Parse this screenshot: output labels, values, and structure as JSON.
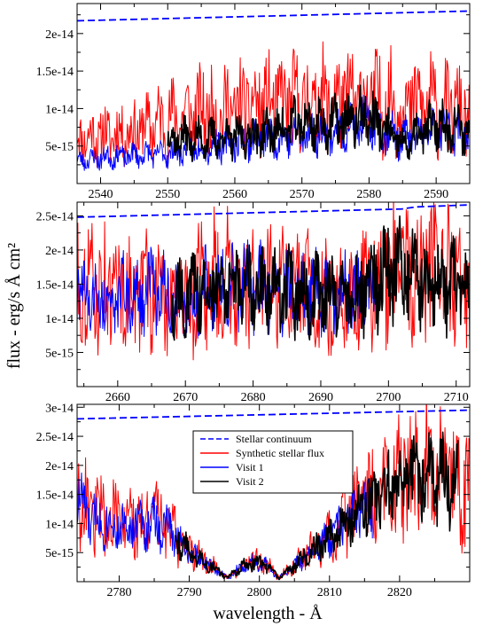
{
  "figure": {
    "ylabel": "flux  - erg/s Å cm²",
    "xlabel": "wavelength - Å"
  },
  "legend": {
    "items": [
      {
        "label": "Stellar continuum",
        "color": "#0000ff",
        "dash": true
      },
      {
        "label": "Synthetic stellar flux",
        "color": "#ff0000",
        "dash": false
      },
      {
        "label": "Visit 1",
        "color": "#0000ff",
        "dash": false
      },
      {
        "label": "Visit 2",
        "color": "#000000",
        "dash": false
      }
    ]
  },
  "colors": {
    "continuum": "#0000ff",
    "synthetic": "#ff0000",
    "visit1": "#0000ff",
    "visit2": "#000000"
  },
  "chart_data": [
    {
      "type": "line",
      "xlim": [
        2536.5,
        2595
      ],
      "ylim": [
        0,
        2.4e-14
      ],
      "xticks": [
        2540,
        2550,
        2560,
        2570,
        2580,
        2590
      ],
      "xtick_labels": [
        "2540",
        "2550",
        "2560",
        "2570",
        "2580",
        "2590"
      ],
      "yticks": [
        5e-15,
        1e-14,
        1.5e-14,
        2e-14
      ],
      "ytick_labels": [
        "5e-15",
        "1e-14",
        "1.5e-14",
        "2e-14"
      ],
      "continuum": {
        "x": [
          2536.5,
          2595
        ],
        "y": [
          2.17e-14,
          2.3e-14
        ]
      },
      "synthetic_profile": {
        "x": [
          2536.5,
          2545,
          2550,
          2555,
          2560,
          2565,
          2570,
          2575,
          2580,
          2585,
          2590,
          2595
        ],
        "y": [
          6e-15,
          7e-15,
          8.5e-15,
          9.5e-15,
          1e-14,
          1.05e-14,
          1.1e-14,
          1.1e-14,
          1.1e-14,
          1.05e-14,
          1.05e-14,
          9e-15
        ]
      },
      "visit1_profile": {
        "x": [
          2536.5,
          2542,
          2550,
          2560,
          2570,
          2575,
          2580,
          2585,
          2590,
          2595
        ],
        "y": [
          3e-15,
          3.6e-15,
          4e-15,
          5.5e-15,
          6.5e-15,
          7e-15,
          8e-15,
          6e-15,
          7e-15,
          7e-15
        ]
      },
      "visit1_range": [
        2536.5,
        2595
      ],
      "visit2_profile": {
        "x": [
          2550,
          2555,
          2560,
          2565,
          2570,
          2575,
          2580,
          2585,
          2590,
          2595
        ],
        "y": [
          6e-15,
          6e-15,
          6e-15,
          7e-15,
          8e-15,
          8e-15,
          9e-15,
          5e-15,
          8e-15,
          7e-15
        ]
      },
      "visit2_range": [
        2550,
        2595
      ]
    },
    {
      "type": "line",
      "xlim": [
        2654,
        2712
      ],
      "ylim": [
        0,
        2.7e-14
      ],
      "xticks": [
        2660,
        2670,
        2680,
        2690,
        2700,
        2710
      ],
      "xtick_labels": [
        "2660",
        "2670",
        "2680",
        "2690",
        "2700",
        "2710"
      ],
      "yticks": [
        5e-15,
        1e-14,
        1.5e-14,
        2e-14,
        2.5e-14
      ],
      "ytick_labels": [
        "5e-15",
        "1e-14",
        "1.5e-14",
        "2e-14",
        "2.5e-14"
      ],
      "continuum": {
        "x": [
          2654,
          2702,
          2704,
          2712
        ],
        "y": [
          2.48e-14,
          2.6e-14,
          2.63e-14,
          2.66e-14
        ]
      },
      "synthetic_profile": {
        "x": [
          2654,
          2660,
          2665,
          2670,
          2675,
          2680,
          2685,
          2690,
          2695,
          2700,
          2705,
          2712
        ],
        "y": [
          1.5e-14,
          1.4e-14,
          1.4e-14,
          1.3e-14,
          1.6e-14,
          1.5e-14,
          1.4e-14,
          1.4e-14,
          1.3e-14,
          1.7e-14,
          1.7e-14,
          1.5e-14
        ]
      },
      "visit1_profile": {
        "x": [
          2654,
          2660,
          2665,
          2670,
          2675,
          2680,
          2685,
          2690,
          2695,
          2700
        ],
        "y": [
          1.3e-14,
          1.3e-14,
          1.4e-14,
          1.2e-14,
          1.5e-14,
          1.5e-14,
          1.4e-14,
          1.4e-14,
          1.4e-14,
          1.2e-14
        ]
      },
      "visit1_range": [
        2654,
        2698
      ],
      "visit2_profile": {
        "x": [
          2668,
          2672,
          2676,
          2680,
          2685,
          2690,
          2695,
          2700,
          2705,
          2712
        ],
        "y": [
          1.2e-14,
          1.4e-14,
          1.5e-14,
          1.4e-14,
          1.4e-14,
          1.3e-14,
          1.3e-14,
          1.7e-14,
          1.6e-14,
          1.4e-14
        ]
      },
      "visit2_range": [
        2668,
        2712
      ]
    },
    {
      "type": "line",
      "xlim": [
        2774,
        2830
      ],
      "ylim": [
        0,
        3.05e-14
      ],
      "xticks": [
        2780,
        2790,
        2800,
        2810,
        2820
      ],
      "xtick_labels": [
        "2780",
        "2790",
        "2800",
        "2810",
        "2820"
      ],
      "yticks": [
        5e-15,
        1e-14,
        1.5e-14,
        2e-14,
        2.5e-14,
        3e-14
      ],
      "ytick_labels": [
        "5e-15",
        "1e-14",
        "1.5e-14",
        "2e-14",
        "2.5e-14",
        "3e-14"
      ],
      "continuum": {
        "x": [
          2774,
          2830
        ],
        "y": [
          2.8e-14,
          2.95e-14
        ]
      },
      "synthetic_profile": {
        "x": [
          2774,
          2776,
          2780,
          2785,
          2788,
          2790,
          2793,
          2795.5,
          2797,
          2799,
          2801,
          2802.8,
          2805,
          2808,
          2812,
          2816,
          2820,
          2824,
          2827,
          2830
        ],
        "y": [
          1.6e-14,
          1.2e-14,
          1e-14,
          1.05e-14,
          9e-15,
          5.5e-15,
          3e-15,
          7e-16,
          2.5e-15,
          3.5e-15,
          3e-15,
          7e-16,
          3e-15,
          6e-15,
          1.1e-14,
          1.45e-14,
          1.7e-14,
          1.95e-14,
          1.7e-14,
          1.6e-14
        ]
      },
      "visit1_profile": {
        "x": [
          2774,
          2776,
          2780,
          2785,
          2788,
          2790,
          2793,
          2795.5,
          2797,
          2799,
          2801,
          2802.8,
          2805,
          2808,
          2812,
          2816
        ],
        "y": [
          1.4e-14,
          1.1e-14,
          9.5e-15,
          1e-14,
          8.5e-15,
          5e-15,
          2.8e-15,
          6e-16,
          2.3e-15,
          3.4e-15,
          2.8e-15,
          6e-16,
          2.8e-15,
          5.5e-15,
          1e-14,
          1.3e-14
        ]
      },
      "visit1_range": [
        2774,
        2816.2
      ],
      "visit2_profile": {
        "x": [
          2788,
          2790,
          2793,
          2795.5,
          2797,
          2799,
          2801,
          2802.8,
          2805,
          2808,
          2812,
          2816,
          2820,
          2824,
          2827,
          2828.4
        ],
        "y": [
          8.5e-15,
          5e-15,
          2.8e-15,
          6e-16,
          2.3e-15,
          3.4e-15,
          2.8e-15,
          6e-16,
          2.8e-15,
          5.5e-15,
          1e-14,
          1.4e-14,
          1.7e-14,
          1.95e-14,
          1.7e-14,
          1.6e-14
        ]
      },
      "visit2_range": [
        2788,
        2828.4
      ]
    }
  ]
}
